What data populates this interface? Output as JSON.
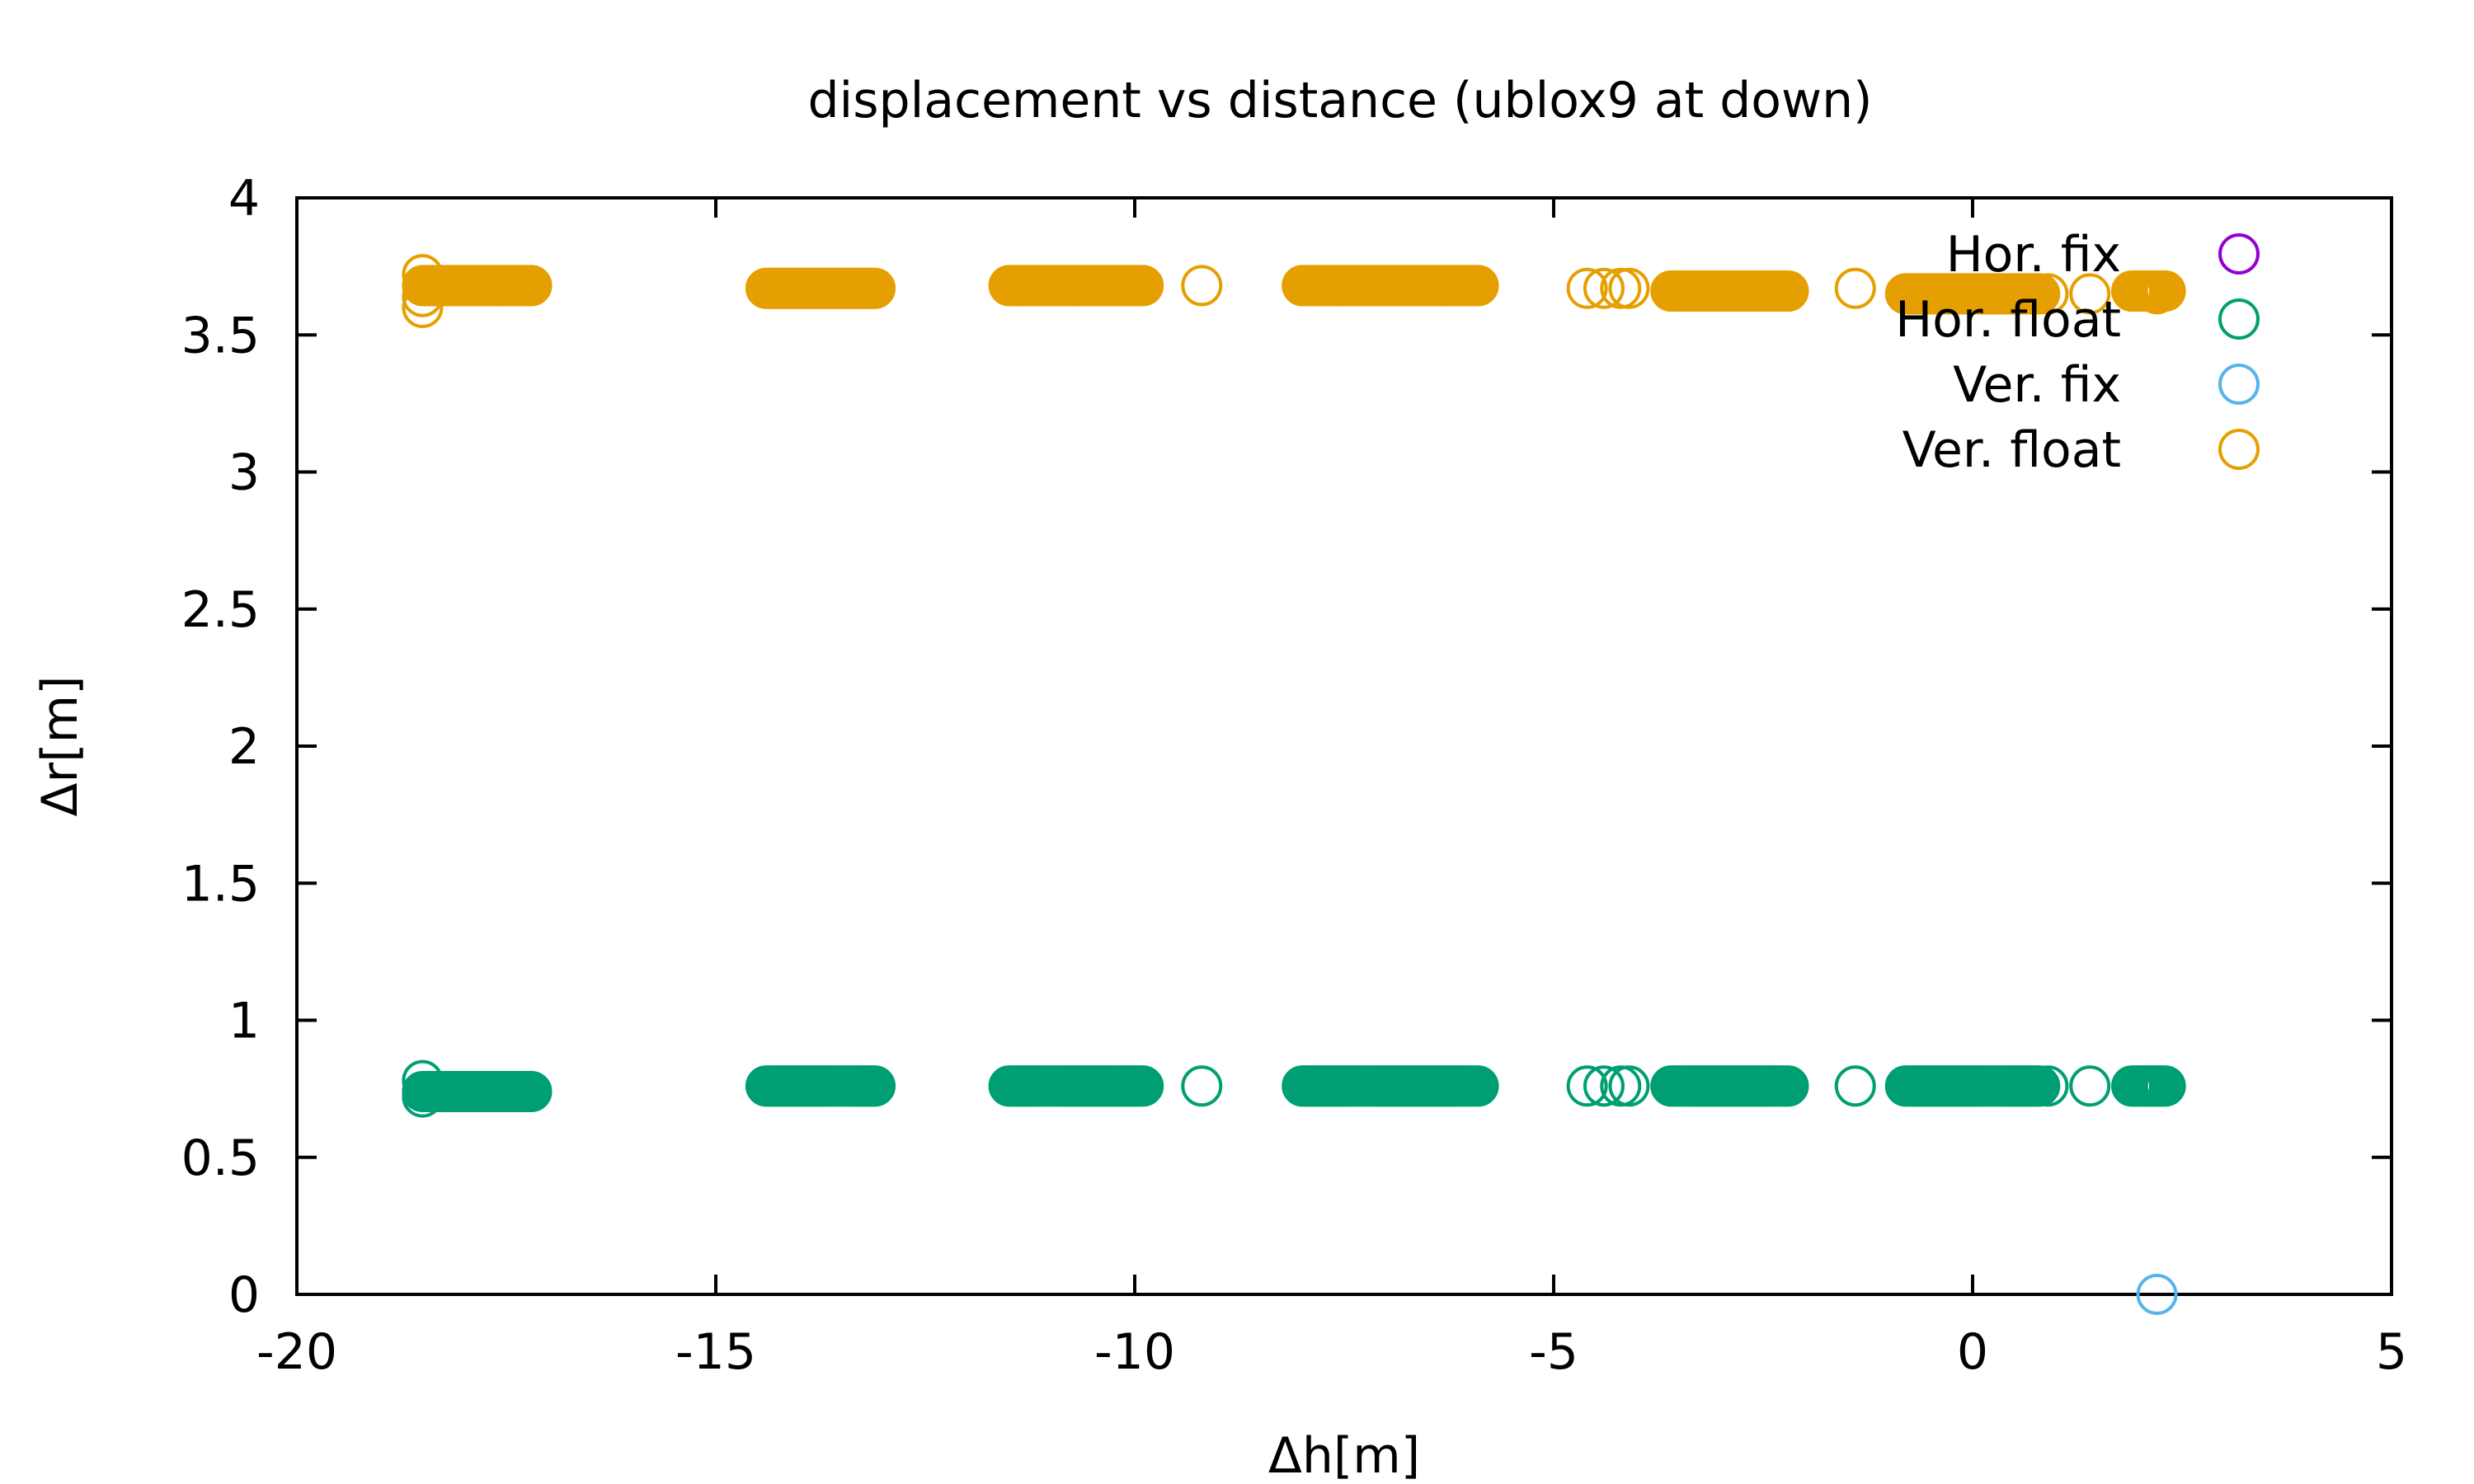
{
  "chart_data": {
    "type": "scatter",
    "title": "displacement vs distance (ublox9 at down)",
    "xlabel": "Δh[m]",
    "ylabel": "Δr[m]",
    "xlim": [
      -20,
      5
    ],
    "ylim": [
      0,
      4
    ],
    "x_ticks": [
      "-20",
      "-15",
      "-10",
      "-5",
      "0",
      "5"
    ],
    "y_ticks": [
      "0",
      "0.5",
      "1",
      "1.5",
      "2",
      "2.5",
      "3",
      "3.5",
      "4"
    ],
    "grid": false,
    "legend_position": "top-right",
    "marker": "open-circle",
    "series": [
      {
        "name": "Hor. fix",
        "color": "#9400d3",
        "points": []
      },
      {
        "name": "Hor. float",
        "color": "#009e73",
        "dense_runs": [
          {
            "x_start": -18.5,
            "x_end": -17.2,
            "y": 0.74
          },
          {
            "x_start": -14.4,
            "x_end": -13.1,
            "y": 0.76
          },
          {
            "x_start": -11.5,
            "x_end": -9.9,
            "y": 0.76
          },
          {
            "x_start": -8.0,
            "x_end": -5.9,
            "y": 0.76
          },
          {
            "x_start": -3.6,
            "x_end": -2.2,
            "y": 0.76
          },
          {
            "x_start": -0.8,
            "x_end": 0.8,
            "y": 0.76
          },
          {
            "x_start": 1.9,
            "x_end": 2.3,
            "y": 0.76
          }
        ],
        "points": [
          [
            -18.5,
            0.72
          ],
          [
            -18.5,
            0.78
          ],
          [
            -9.2,
            0.76
          ],
          [
            -4.6,
            0.76
          ],
          [
            -4.4,
            0.76
          ],
          [
            -4.2,
            0.76
          ],
          [
            -4.1,
            0.76
          ],
          [
            -1.4,
            0.76
          ],
          [
            0.9,
            0.76
          ],
          [
            1.4,
            0.76
          ],
          [
            2.2,
            0.76
          ]
        ]
      },
      {
        "name": "Ver. fix",
        "color": "#56b4e9",
        "points": [
          [
            2.2,
            0.0
          ]
        ]
      },
      {
        "name": "Ver. float",
        "color": "#e69f00",
        "dense_runs": [
          {
            "x_start": -18.5,
            "x_end": -17.2,
            "y": 3.68
          },
          {
            "x_start": -14.4,
            "x_end": -13.1,
            "y": 3.67
          },
          {
            "x_start": -11.5,
            "x_end": -9.9,
            "y": 3.68
          },
          {
            "x_start": -8.0,
            "x_end": -5.9,
            "y": 3.68
          },
          {
            "x_start": -3.6,
            "x_end": -2.2,
            "y": 3.66
          },
          {
            "x_start": -0.8,
            "x_end": 0.8,
            "y": 3.65
          },
          {
            "x_start": 1.9,
            "x_end": 2.3,
            "y": 3.66
          }
        ],
        "points": [
          [
            -18.5,
            3.6
          ],
          [
            -18.5,
            3.72
          ],
          [
            -18.5,
            3.64
          ],
          [
            -9.2,
            3.68
          ],
          [
            -4.6,
            3.67
          ],
          [
            -4.4,
            3.67
          ],
          [
            -4.2,
            3.67
          ],
          [
            -4.1,
            3.67
          ],
          [
            -1.4,
            3.67
          ],
          [
            0.9,
            3.65
          ],
          [
            1.4,
            3.65
          ],
          [
            2.2,
            3.65
          ]
        ]
      }
    ]
  }
}
